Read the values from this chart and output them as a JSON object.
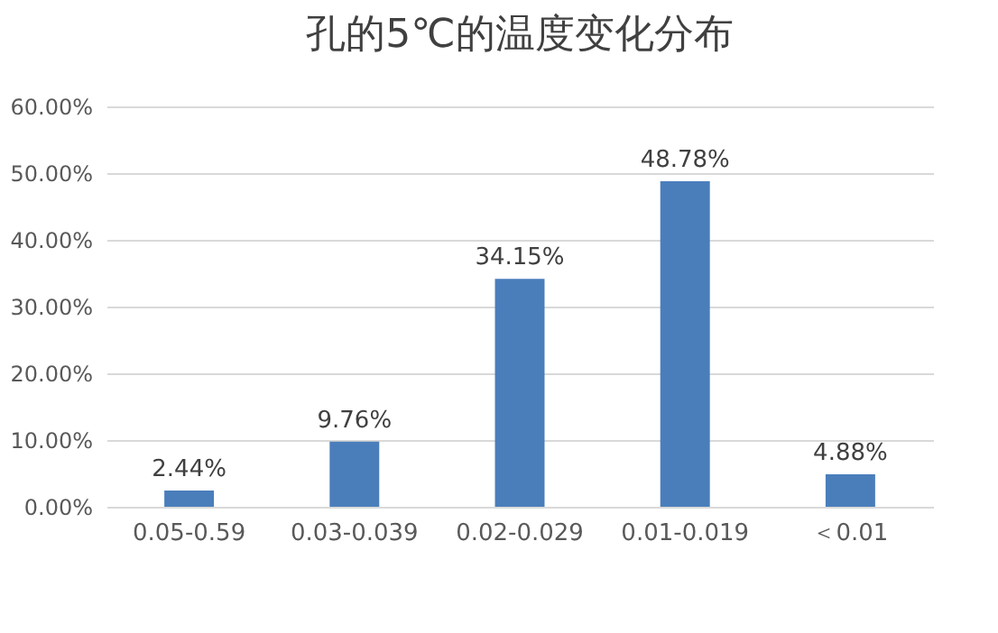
{
  "chart_data": {
    "type": "bar",
    "title": "孔的5℃的温度变化分布",
    "categories": [
      "0.05-0.59",
      "0.03-0.039",
      "0.02-0.029",
      "0.01-0.019",
      "＜0.01"
    ],
    "values": [
      2.44,
      9.76,
      34.15,
      48.78,
      4.88
    ],
    "value_labels": [
      "2.44%",
      "9.76%",
      "34.15%",
      "48.78%",
      "4.88%"
    ],
    "color": "#4a7ebb",
    "ylim": [
      0,
      60
    ],
    "yticks": [
      {
        "value": 0,
        "label": "0.00%"
      },
      {
        "value": 10,
        "label": "10.00%"
      },
      {
        "value": 20,
        "label": "20.00%"
      },
      {
        "value": 30,
        "label": "30.00%"
      },
      {
        "value": 40,
        "label": "40.00%"
      },
      {
        "value": 50,
        "label": "50.00%"
      },
      {
        "value": 60,
        "label": "60.00%"
      }
    ],
    "grid": "y"
  }
}
